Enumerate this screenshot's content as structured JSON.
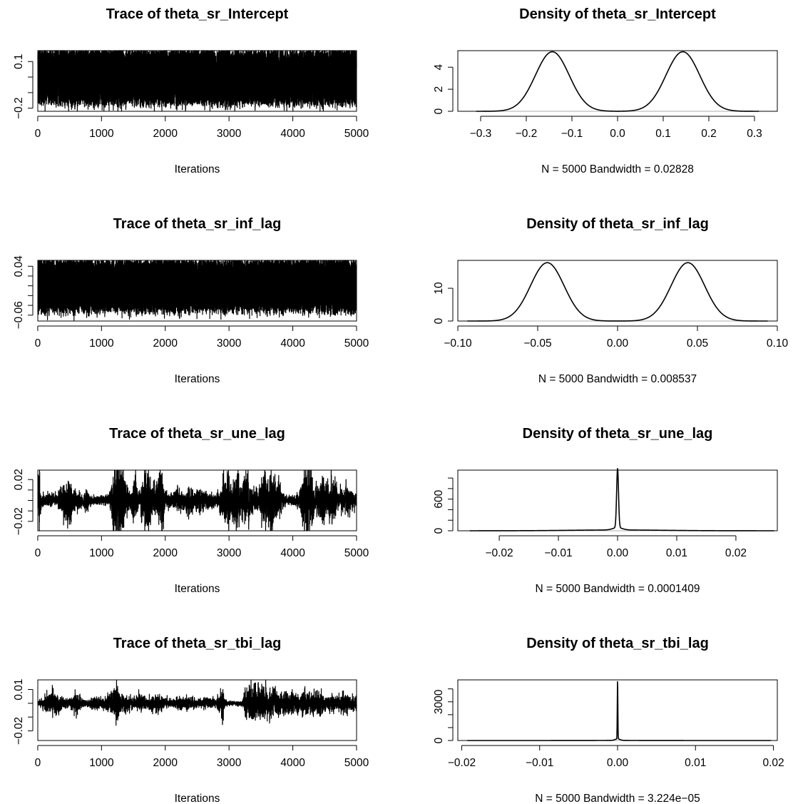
{
  "figure": {
    "colors": {
      "line": "#000000",
      "baseline": "#bebebe",
      "background": "#ffffff"
    }
  },
  "chart_data": [
    {
      "type": "line",
      "title": "Trace of theta_sr_Intercept",
      "xlabel": "Iterations",
      "xlim": [
        1,
        5000
      ],
      "ylim": [
        -0.22,
        0.17
      ],
      "xticks": [
        0,
        1000,
        2000,
        3000,
        4000,
        5000
      ],
      "xtick_labels": [
        "0",
        "1000",
        "2000",
        "3000",
        "4000",
        "5000"
      ],
      "yticks": [
        -0.2,
        -0.1,
        0,
        0.1
      ],
      "ytick_labels": [
        "−0.2",
        "",
        "",
        "0.1"
      ],
      "trace": {
        "n": 5000,
        "modes": [
          -0.143,
          0.143
        ],
        "sd": 0.028,
        "envelope": [
          [
            0,
            1
          ],
          [
            5000,
            1
          ]
        ]
      }
    },
    {
      "type": "line",
      "title": "Density of theta_sr_Intercept",
      "xlabel": "N = 5000   Bandwidth = 0.02828",
      "xlim": [
        -0.35,
        0.35
      ],
      "ylim": [
        0,
        5.5
      ],
      "xticks": [
        -0.3,
        -0.2,
        -0.1,
        0.0,
        0.1,
        0.2,
        0.3
      ],
      "xtick_labels": [
        "−0.3",
        "−0.2",
        "−0.1",
        "0.0",
        "0.1",
        "0.2",
        "0.3"
      ],
      "yticks": [
        0,
        2,
        4
      ],
      "ytick_labels": [
        "0",
        "2",
        "4"
      ],
      "density": {
        "range": [
          -0.31,
          0.31
        ],
        "peaks": [
          {
            "x": -0.143,
            "sd": 0.037,
            "h": 5.4
          },
          {
            "x": 0.143,
            "sd": 0.037,
            "h": 5.4
          }
        ]
      }
    },
    {
      "type": "line",
      "title": "Trace of theta_sr_inf_lag",
      "xlabel": "Iterations",
      "xlim": [
        1,
        5000
      ],
      "ylim": [
        -0.072,
        0.052
      ],
      "xticks": [
        0,
        1000,
        2000,
        3000,
        4000,
        5000
      ],
      "xtick_labels": [
        "0",
        "1000",
        "2000",
        "3000",
        "4000",
        "5000"
      ],
      "yticks": [
        -0.06,
        -0.04,
        -0.02,
        0.0,
        0.02,
        0.04
      ],
      "ytick_labels": [
        "−0.06",
        "",
        "",
        "",
        "",
        "0.04"
      ],
      "trace": {
        "n": 5000,
        "modes": [
          -0.043,
          0.043
        ],
        "sd": 0.0085,
        "envelope": [
          [
            0,
            1
          ],
          [
            5000,
            1
          ]
        ]
      }
    },
    {
      "type": "line",
      "title": "Density of theta_sr_inf_lag",
      "xlabel": "N = 5000   Bandwidth = 0.008537",
      "xlim": [
        -0.1,
        0.1
      ],
      "ylim": [
        0,
        18.5
      ],
      "xticks": [
        -0.1,
        -0.05,
        0.0,
        0.05,
        0.1
      ],
      "xtick_labels": [
        "−0.10",
        "−0.05",
        "0.00",
        "0.05",
        "0.10"
      ],
      "yticks": [
        0,
        10
      ],
      "ytick_labels": [
        "0",
        "10"
      ],
      "density": {
        "range": [
          -0.094,
          0.094
        ],
        "peaks": [
          {
            "x": -0.044,
            "sd": 0.0105,
            "h": 17.8
          },
          {
            "x": 0.044,
            "sd": 0.0105,
            "h": 17.8
          }
        ]
      }
    },
    {
      "type": "line",
      "title": "Trace of theta_sr_une_lag",
      "xlabel": "Iterations",
      "xlim": [
        1,
        5000
      ],
      "ylim": [
        -0.029,
        0.029
      ],
      "xticks": [
        0,
        1000,
        2000,
        3000,
        4000,
        5000
      ],
      "xtick_labels": [
        "0",
        "1000",
        "2000",
        "3000",
        "4000",
        "5000"
      ],
      "yticks": [
        -0.02,
        -0.01,
        0.0,
        0.01,
        0.02
      ],
      "ytick_labels": [
        "−0.02",
        "",
        "",
        "",
        "0.02"
      ],
      "trace": {
        "n": 5000,
        "modes": [
          0
        ],
        "sd": 0.001,
        "envelope": [
          [
            0,
            7
          ],
          [
            30,
            14
          ],
          [
            60,
            3
          ],
          [
            300,
            3
          ],
          [
            380,
            8
          ],
          [
            500,
            12
          ],
          [
            560,
            5
          ],
          [
            700,
            3
          ],
          [
            760,
            5
          ],
          [
            850,
            2
          ],
          [
            1000,
            2
          ],
          [
            1120,
            3
          ],
          [
            1180,
            12
          ],
          [
            1250,
            17
          ],
          [
            1330,
            19
          ],
          [
            1400,
            8
          ],
          [
            1460,
            4
          ],
          [
            1520,
            13
          ],
          [
            1580,
            5
          ],
          [
            1650,
            11
          ],
          [
            1720,
            15
          ],
          [
            1780,
            6
          ],
          [
            1850,
            10
          ],
          [
            1950,
            15
          ],
          [
            2000,
            4
          ],
          [
            2100,
            3
          ],
          [
            2200,
            6
          ],
          [
            2300,
            4
          ],
          [
            2400,
            8
          ],
          [
            2450,
            3
          ],
          [
            2550,
            6
          ],
          [
            2700,
            3
          ],
          [
            2800,
            3
          ],
          [
            2900,
            8
          ],
          [
            3000,
            16
          ],
          [
            3050,
            9
          ],
          [
            3130,
            13
          ],
          [
            3200,
            7
          ],
          [
            3300,
            14
          ],
          [
            3360,
            5
          ],
          [
            3460,
            5
          ],
          [
            3560,
            13
          ],
          [
            3650,
            16
          ],
          [
            3720,
            11
          ],
          [
            3800,
            6
          ],
          [
            3880,
            2
          ],
          [
            4000,
            2
          ],
          [
            4100,
            4
          ],
          [
            4200,
            17
          ],
          [
            4280,
            16
          ],
          [
            4350,
            5
          ],
          [
            4420,
            9
          ],
          [
            4480,
            13
          ],
          [
            4550,
            6
          ],
          [
            4620,
            11
          ],
          [
            4700,
            4
          ],
          [
            4800,
            5
          ],
          [
            4850,
            10
          ],
          [
            4900,
            6
          ],
          [
            5000,
            3
          ]
        ]
      }
    },
    {
      "type": "line",
      "title": "Density of theta_sr_une_lag",
      "xlabel": "N = 5000   Bandwidth = 0.0001409",
      "xlim": [
        -0.027,
        0.027
      ],
      "ylim": [
        0,
        1150
      ],
      "xticks": [
        -0.02,
        -0.01,
        0.0,
        0.01,
        0.02
      ],
      "xtick_labels": [
        "−0.02",
        "−0.01",
        "0.00",
        "0.01",
        "0.02"
      ],
      "yticks": [
        0,
        200,
        400,
        600,
        800,
        1000
      ],
      "ytick_labels": [
        "0",
        "",
        "",
        "600",
        "",
        ""
      ],
      "density": {
        "range": [
          -0.025,
          0.0265
        ],
        "peaks": [
          {
            "x": 0.0,
            "sd": 0.00016,
            "h": 1120
          },
          {
            "x": 0.0,
            "sd": 0.0008,
            "h": 45
          },
          {
            "x": 0.0,
            "sd": 0.008,
            "h": 15
          }
        ]
      }
    },
    {
      "type": "line",
      "title": "Trace of theta_sr_tbi_lag",
      "xlabel": "Iterations",
      "xlim": [
        1,
        5000
      ],
      "ylim": [
        -0.027,
        0.017
      ],
      "xticks": [
        0,
        1000,
        2000,
        3000,
        4000,
        5000
      ],
      "xtick_labels": [
        "0",
        "1000",
        "2000",
        "3000",
        "4000",
        "5000"
      ],
      "yticks": [
        -0.02,
        -0.01,
        0.0,
        0.01
      ],
      "ytick_labels": [
        "−0.02",
        "",
        "",
        "0.01"
      ],
      "trace": {
        "n": 5000,
        "modes": [
          0
        ],
        "sd": 0.00035,
        "envelope": [
          [
            0,
            3
          ],
          [
            100,
            6
          ],
          [
            200,
            10
          ],
          [
            300,
            11
          ],
          [
            400,
            5
          ],
          [
            500,
            4
          ],
          [
            600,
            11
          ],
          [
            700,
            5
          ],
          [
            800,
            3
          ],
          [
            900,
            7
          ],
          [
            1000,
            5
          ],
          [
            1100,
            9
          ],
          [
            1200,
            15
          ],
          [
            1250,
            20
          ],
          [
            1300,
            8
          ],
          [
            1400,
            9
          ],
          [
            1500,
            6
          ],
          [
            1600,
            8
          ],
          [
            1700,
            5
          ],
          [
            1800,
            7
          ],
          [
            1900,
            10
          ],
          [
            2000,
            4
          ],
          [
            2100,
            4
          ],
          [
            2200,
            6
          ],
          [
            2300,
            5
          ],
          [
            2400,
            7
          ],
          [
            2500,
            4
          ],
          [
            2600,
            7
          ],
          [
            2700,
            5
          ],
          [
            2800,
            4
          ],
          [
            2880,
            15
          ],
          [
            2900,
            22
          ],
          [
            2930,
            3
          ],
          [
            3000,
            2
          ],
          [
            3100,
            2
          ],
          [
            3200,
            3
          ],
          [
            3240,
            14
          ],
          [
            3300,
            16
          ],
          [
            3400,
            21
          ],
          [
            3500,
            18
          ],
          [
            3560,
            26
          ],
          [
            3600,
            13
          ],
          [
            3700,
            17
          ],
          [
            3800,
            11
          ],
          [
            3900,
            12
          ],
          [
            4000,
            10
          ],
          [
            4100,
            9
          ],
          [
            4200,
            11
          ],
          [
            4300,
            9
          ],
          [
            4400,
            14
          ],
          [
            4500,
            6
          ],
          [
            4600,
            9
          ],
          [
            4700,
            7
          ],
          [
            4800,
            13
          ],
          [
            4900,
            8
          ],
          [
            5000,
            7
          ]
        ]
      }
    },
    {
      "type": "line",
      "title": "Density of theta_sr_tbi_lag",
      "xlabel": "N = 5000   Bandwidth = 3.224e−05",
      "xlim": [
        -0.0205,
        0.0205
      ],
      "ylim": [
        0,
        4700
      ],
      "xticks": [
        -0.02,
        -0.01,
        0.0,
        0.01,
        0.02
      ],
      "xtick_labels": [
        "−0.02",
        "−0.01",
        "0.00",
        "0.01",
        "0.02"
      ],
      "yticks": [
        0,
        1000,
        2000,
        3000,
        4000
      ],
      "ytick_labels": [
        "0",
        "",
        "",
        "3000",
        ""
      ],
      "density": {
        "range": [
          -0.0193,
          0.0197
        ],
        "peaks": [
          {
            "x": 0.0,
            "sd": 3.5e-05,
            "h": 4550
          },
          {
            "x": 0.0,
            "sd": 0.0003,
            "h": 120
          },
          {
            "x": 0.0,
            "sd": 0.004,
            "h": 8
          }
        ]
      }
    }
  ]
}
